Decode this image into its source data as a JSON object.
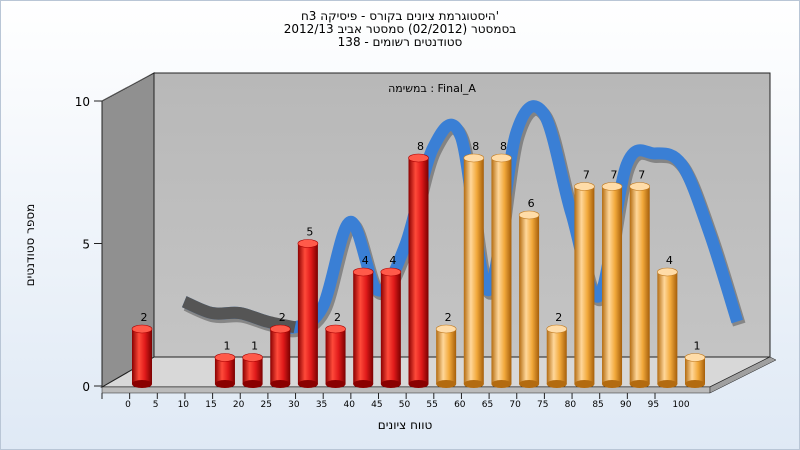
{
  "titles": {
    "line1": "היסטוגרמת ציונים בקורס - פיסיקה 3ח'",
    "line2": "בסמסטר  (02/2012)  סמסטר אביב 2012/13",
    "line3": "סטודנטים רשומים - 138"
  },
  "chart_data": {
    "type": "bar",
    "subtitle": "במשימה : Final_A",
    "xlabel": "טווח ציונים",
    "ylabel": "מספר סטודנטים",
    "ylim": [
      0,
      10
    ],
    "y_ticks": [
      0,
      5,
      10
    ],
    "x_ticks": [
      0,
      5,
      10,
      15,
      20,
      25,
      30,
      35,
      40,
      45,
      50,
      55,
      60,
      65,
      70,
      75,
      80,
      85,
      90,
      95,
      100
    ],
    "bars": [
      {
        "x": 0,
        "value": 2,
        "color": "#e01a1a"
      },
      {
        "x": 15,
        "value": 1,
        "color": "#e01a1a"
      },
      {
        "x": 20,
        "value": 1,
        "color": "#e01a1a"
      },
      {
        "x": 25,
        "value": 2,
        "color": "#e01a1a"
      },
      {
        "x": 30,
        "value": 5,
        "color": "#e01a1a"
      },
      {
        "x": 35,
        "value": 2,
        "color": "#e01a1a"
      },
      {
        "x": 40,
        "value": 4,
        "color": "#e01a1a"
      },
      {
        "x": 45,
        "value": 4,
        "color": "#e01a1a"
      },
      {
        "x": 50,
        "value": 8,
        "color": "#e01a1a"
      },
      {
        "x": 55,
        "value": 2,
        "color": "#f2a93b"
      },
      {
        "x": 60,
        "value": 8,
        "color": "#f2a93b"
      },
      {
        "x": 65,
        "value": 8,
        "color": "#f2a93b"
      },
      {
        "x": 70,
        "value": 6,
        "color": "#f2a93b"
      },
      {
        "x": 75,
        "value": 2,
        "color": "#f2a93b"
      },
      {
        "x": 80,
        "value": 7,
        "color": "#f2a93b"
      },
      {
        "x": 85,
        "value": 7,
        "color": "#f2a93b"
      },
      {
        "x": 90,
        "value": 7,
        "color": "#f2a93b"
      },
      {
        "x": 95,
        "value": 4,
        "color": "#f2a93b"
      },
      {
        "x": 100,
        "value": 1,
        "color": "#f2a93b"
      }
    ],
    "curve": {
      "color": "#3a7fd5",
      "shadow_color": "#555555",
      "points": [
        {
          "x": 5,
          "y": 2.4
        },
        {
          "x": 10,
          "y": 2.0
        },
        {
          "x": 15,
          "y": 2.0
        },
        {
          "x": 20,
          "y": 1.7
        },
        {
          "x": 25,
          "y": 1.5
        },
        {
          "x": 30,
          "y": 2.2
        },
        {
          "x": 35,
          "y": 5.2
        },
        {
          "x": 40,
          "y": 2.8
        },
        {
          "x": 45,
          "y": 4.4
        },
        {
          "x": 50,
          "y": 7.8
        },
        {
          "x": 55,
          "y": 8.2
        },
        {
          "x": 60,
          "y": 2.8
        },
        {
          "x": 65,
          "y": 8.3
        },
        {
          "x": 70,
          "y": 9.0
        },
        {
          "x": 75,
          "y": 5.5
        },
        {
          "x": 80,
          "y": 2.6
        },
        {
          "x": 85,
          "y": 7.2
        },
        {
          "x": 90,
          "y": 7.6
        },
        {
          "x": 95,
          "y": 7.2
        },
        {
          "x": 100,
          "y": 4.8
        },
        {
          "x": 105,
          "y": 1.7
        }
      ]
    },
    "grid": false,
    "legend": "none"
  }
}
